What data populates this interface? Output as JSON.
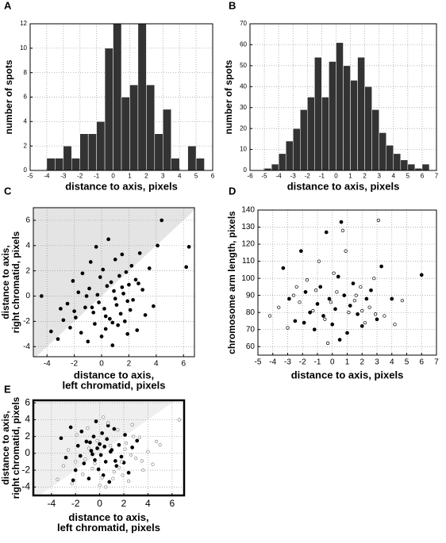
{
  "chart_data": [
    {
      "type": "histogram",
      "panel_label": "A",
      "xlabel": "distance to axis, pixels",
      "ylabel": "number of spots",
      "bins": [
        -4,
        -3.5,
        -3,
        -2.5,
        -2,
        -1.5,
        -1,
        -0.5,
        0,
        0.5,
        1,
        1.5,
        2,
        2.5,
        3,
        3.5,
        4,
        4.5,
        5,
        5.5
      ],
      "values": [
        1,
        1,
        2,
        1,
        3,
        3,
        4,
        10,
        12,
        6,
        7,
        12,
        7,
        3,
        5,
        1,
        0,
        2,
        1
      ],
      "color": "#333333",
      "xlim": [
        -5,
        6
      ],
      "ylim": [
        0,
        12
      ],
      "xticks": [
        -5,
        -4,
        -3,
        -2,
        -1,
        0,
        1,
        2,
        3,
        4,
        5,
        6
      ],
      "yticks": [
        0,
        2,
        4,
        6,
        8,
        10,
        12
      ],
      "grid": true
    },
    {
      "type": "histogram",
      "panel_label": "B",
      "xlabel": "distance to axis, pixels",
      "ylabel": "number of spots",
      "bins": [
        -5,
        -4.5,
        -4,
        -3.5,
        -3,
        -2.5,
        -2,
        -1.5,
        -1,
        -0.5,
        0,
        0.5,
        1,
        1.5,
        2,
        2.5,
        3,
        3.5,
        4,
        4.5,
        5,
        5.5,
        6,
        6.5
      ],
      "values": [
        1,
        3,
        8,
        14,
        20,
        29,
        35,
        54,
        35,
        52,
        61,
        50,
        43,
        54,
        40,
        29,
        18,
        12,
        8,
        5,
        3,
        1,
        3
      ],
      "color": "#333333",
      "xlim": [
        -6,
        7
      ],
      "ylim": [
        0,
        70
      ],
      "xticks": [
        -6,
        -5,
        -4,
        -3,
        -2,
        -1,
        0,
        1,
        2,
        3,
        4,
        5,
        6,
        7
      ],
      "yticks": [
        0,
        10,
        20,
        30,
        40,
        50,
        60,
        70
      ],
      "grid": true
    },
    {
      "type": "scatter",
      "panel_label": "C",
      "xlabel": [
        "distance to axis,",
        "left chromatid, pixels"
      ],
      "ylabel": [
        "distance to axis,",
        "right chromatid, pixels"
      ],
      "series": [
        {
          "color": "#000000",
          "marker": "filled",
          "x": [
            -4.4,
            -3.7,
            -3.2,
            -2.8,
            -2.5,
            -2.3,
            -2.1,
            -1.9,
            -1.7,
            -1.5,
            -1.4,
            -1.2,
            -1.0,
            -0.9,
            -0.8,
            -0.6,
            -0.5,
            -0.4,
            -0.3,
            -0.2,
            -0.1,
            0.0,
            0.1,
            0.2,
            0.3,
            0.4,
            0.5,
            0.6,
            0.7,
            0.8,
            0.9,
            1.0,
            1.1,
            1.2,
            1.3,
            1.4,
            1.5,
            1.6,
            1.7,
            1.8,
            1.9,
            2.0,
            2.1,
            2.2,
            2.3,
            2.5,
            2.6,
            2.8,
            3.0,
            3.2,
            3.5,
            3.8,
            4.1,
            4.4,
            6.2,
            6.4,
            -2.0,
            -1.1,
            0.3,
            1.0,
            1.5,
            -0.7,
            2.7,
            0.8,
            -3.0,
            1.9
          ],
          "values": [
            0.0,
            -2.8,
            -3.4,
            -1.9,
            -0.6,
            -2.5,
            1.2,
            -1.7,
            0.3,
            -2.9,
            1.8,
            -0.9,
            -3.6,
            0.6,
            2.7,
            -1.3,
            -2.2,
            3.9,
            0.1,
            -0.5,
            1.5,
            -3.2,
            2.1,
            -1.0,
            -2.6,
            0.8,
            4.5,
            -1.8,
            1.1,
            -3.9,
            0.4,
            2.9,
            -0.7,
            -2.3,
            1.6,
            -1.4,
            3.3,
            0.2,
            -2.0,
            1.9,
            -3.0,
            0.9,
            -1.1,
            2.4,
            -0.3,
            1.3,
            -2.7,
            3.4,
            0.5,
            -1.5,
            2.2,
            -0.8,
            4.0,
            6.0,
            2.3,
            3.9,
            -1.2,
            0.0,
            -1.6,
            -0.2,
            0.7,
            -0.9,
            1.0,
            -2.1,
            -1.0,
            -0.4
          ]
        }
      ],
      "xlim": [
        -5,
        6.8
      ],
      "ylim": [
        -4.8,
        7
      ],
      "xticks": [
        -4,
        -2,
        0,
        2,
        4,
        6
      ],
      "yticks": [
        -4,
        -2,
        0,
        2,
        4,
        6
      ],
      "grid": true,
      "diagonal_shade": true,
      "shade_color": "#e4e4e4"
    },
    {
      "type": "scatter",
      "panel_label": "D",
      "xlabel": "distance to axis, pixels",
      "ylabel": "chromosome arm length, pixels",
      "series": [
        {
          "color": "#000000",
          "marker": "filled",
          "x": [
            -3.3,
            -2.9,
            -2.5,
            -2.1,
            -1.8,
            -1.5,
            -1.2,
            -1.0,
            -0.8,
            -0.6,
            -0.4,
            -0.2,
            0.0,
            0.2,
            0.4,
            0.6,
            0.8,
            1.0,
            1.2,
            1.4,
            1.7,
            2.0,
            2.3,
            2.6,
            3.0,
            3.3,
            4.0,
            6.0,
            0.5,
            -1.9
          ],
          "values": [
            106,
            88,
            75,
            116,
            92,
            80,
            70,
            85,
            95,
            78,
            127,
            88,
            73,
            82,
            101,
            133,
            90,
            68,
            84,
            97,
            79,
            72,
            88,
            93,
            76,
            107,
            88,
            102,
            64,
            74
          ]
        },
        {
          "color": "#000000",
          "marker": "open",
          "x": [
            -4.2,
            -3.6,
            -3.0,
            -2.6,
            -2.2,
            -1.7,
            -1.3,
            -0.9,
            -0.5,
            -0.1,
            0.3,
            0.7,
            1.1,
            1.5,
            1.9,
            2.2,
            2.5,
            2.8,
            3.1,
            3.5,
            4.2,
            4.7,
            -0.3,
            0.9,
            1.6,
            2.0,
            -1.1,
            0.1,
            2.9,
            -2.4
          ],
          "values": [
            78,
            83,
            71,
            90,
            86,
            99,
            81,
            110,
            76,
            86,
            92,
            128,
            80,
            87,
            95,
            74,
            83,
            100,
            134,
            78,
            73,
            87,
            62,
            116,
            90,
            81,
            93,
            103,
            79,
            95
          ]
        }
      ],
      "xlim": [
        -5,
        7
      ],
      "ylim": [
        55,
        140
      ],
      "xticks": [
        -5,
        -4,
        -3,
        -2,
        -1,
        0,
        1,
        2,
        3,
        4,
        5,
        6,
        7
      ],
      "yticks": [
        60,
        70,
        80,
        90,
        100,
        110,
        120,
        130,
        140
      ],
      "grid": true
    },
    {
      "type": "scatter",
      "panel_label": "E",
      "xlabel": [
        "distance to axis,",
        "left chromatid, pixels"
      ],
      "ylabel": [
        "distance to axis,",
        "right chromatid, pixels"
      ],
      "series": [
        {
          "color": "#000000",
          "marker": "filled",
          "x": [
            -3.2,
            -2.8,
            -2.4,
            -2.0,
            -1.8,
            -1.5,
            -1.3,
            -1.1,
            -0.9,
            -0.7,
            -0.5,
            -0.4,
            -0.3,
            -0.2,
            -0.1,
            0.0,
            0.1,
            0.2,
            0.3,
            0.4,
            0.5,
            0.6,
            0.8,
            1.0,
            1.2,
            1.4,
            1.6,
            1.8,
            2.1,
            2.4,
            2.7,
            3.1,
            -1.6,
            -0.6,
            0.7,
            1.3,
            -2.2,
            0.9,
            2.0,
            -0.8
          ],
          "values": [
            1.8,
            -0.5,
            3.1,
            -2.0,
            0.9,
            2.6,
            -1.2,
            1.4,
            -3.0,
            0.3,
            2.0,
            -0.8,
            3.8,
            0.6,
            -1.9,
            1.1,
            -0.2,
            2.4,
            -2.6,
            0.8,
            -1.0,
            1.7,
            -3.4,
            0.4,
            2.9,
            -1.5,
            1.0,
            -0.4,
            2.2,
            -2.3,
            0.7,
            1.5,
            -0.3,
            -0.1,
            3.3,
            -0.9,
            -3.2,
            0.2,
            -1.1,
            1.3
          ]
        },
        {
          "color": "#888888",
          "marker": "open",
          "x": [
            -3.5,
            -3.0,
            -2.6,
            -2.3,
            -1.9,
            -1.4,
            -1.0,
            -0.6,
            -0.2,
            0.2,
            0.5,
            0.9,
            1.2,
            1.5,
            1.8,
            2.1,
            2.4,
            2.7,
            3.0,
            3.3,
            3.6,
            4.0,
            4.4,
            5.0,
            6.6,
            -1.2,
            0.0,
            0.7,
            1.9,
            2.8,
            -0.4,
            1.1,
            2.2,
            3.5,
            -2.0,
            0.3,
            1.6,
            2.6,
            4.7,
            -0.9
          ],
          "values": [
            -3.1,
            -1.5,
            0.4,
            -3.6,
            2.2,
            -2.5,
            3.0,
            -1.8,
            1.5,
            -2.9,
            -4.0,
            0.9,
            -2.2,
            2.8,
            -1.0,
            0.5,
            -3.3,
            3.4,
            -0.6,
            1.9,
            -2.0,
            0.2,
            -1.3,
            1.0,
            4.0,
            -0.7,
            -3.8,
            3.6,
            -2.6,
            2.0,
            -1.2,
            -3.0,
            1.2,
            -0.9,
            -1.0,
            4.3,
            -1.7,
            -0.2,
            1.4,
            0.6
          ]
        }
      ],
      "xlim": [
        -5.5,
        7
      ],
      "ylim": [
        -5,
        6.3
      ],
      "xticks": [
        -4,
        -2,
        0,
        2,
        4,
        6
      ],
      "yticks": [
        -4,
        -2,
        0,
        2,
        4,
        6
      ],
      "grid": true,
      "diagonal_shade": true,
      "shade_color": "#efefef",
      "frame_width": 2.5
    }
  ]
}
